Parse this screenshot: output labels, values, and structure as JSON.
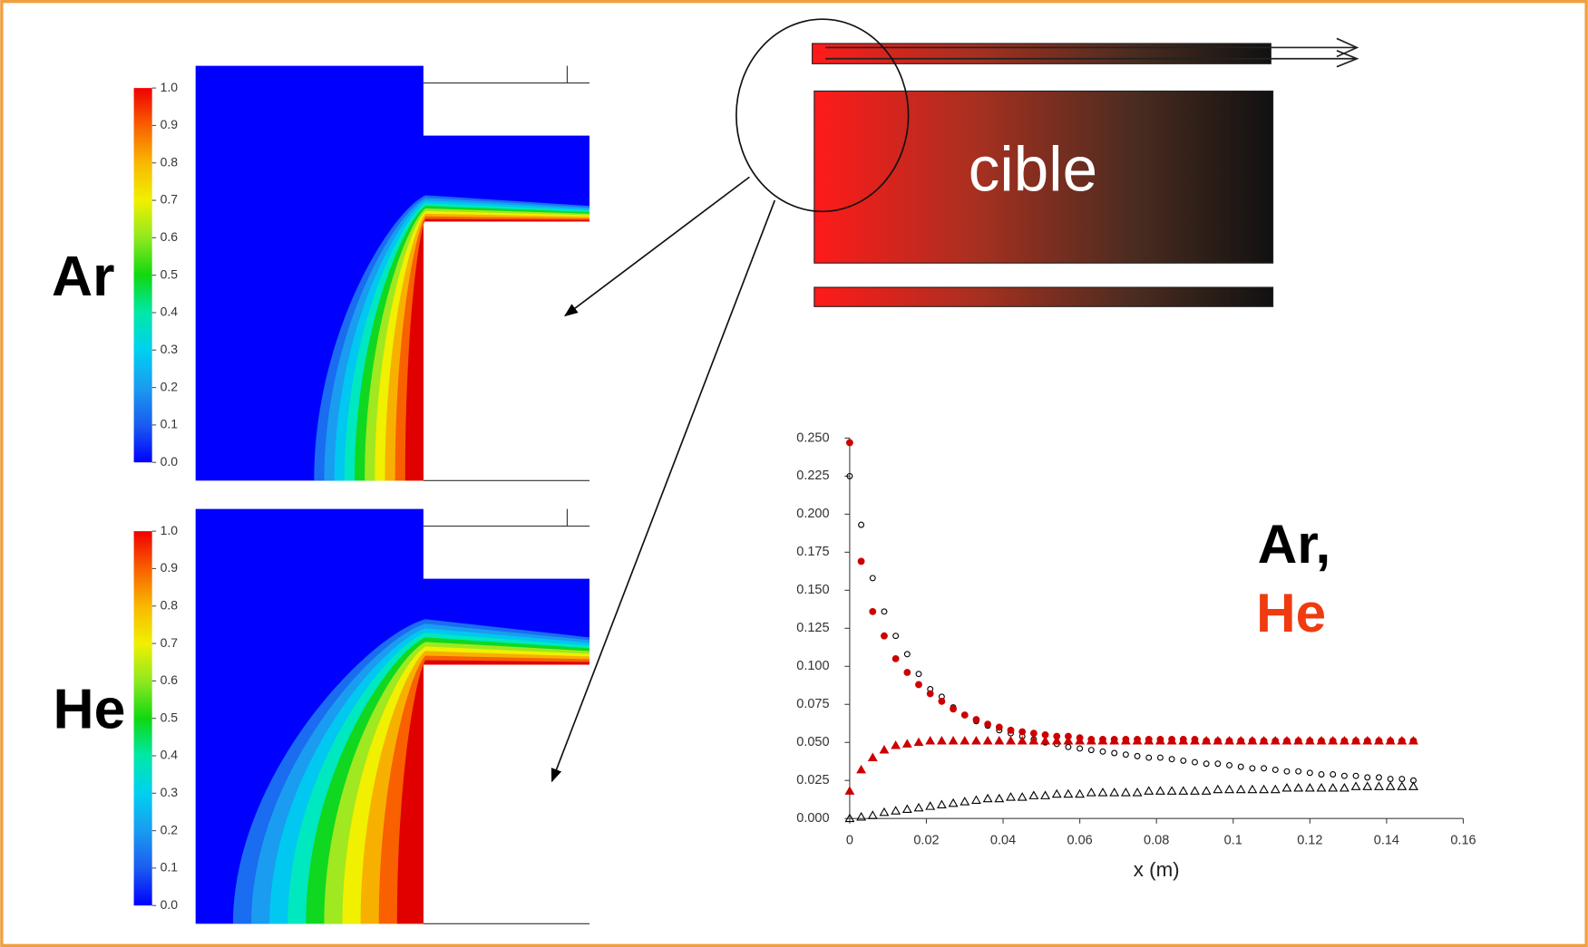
{
  "diagram_label": "cible",
  "contours": [
    {
      "label": "Ar",
      "colorbar_ticks": [
        {
          "value": 0,
          "label": "0.0"
        },
        0.1,
        0.2,
        0.3,
        0.4,
        0.5,
        0.6,
        0.7,
        0.8,
        0.9,
        {
          "value": 1,
          "label": "1.0"
        }
      ]
    },
    {
      "label": "He",
      "colorbar_ticks": [
        {
          "value": 0,
          "label": "0.0"
        },
        0.1,
        0.2,
        0.3,
        0.4,
        0.5,
        0.6,
        0.7,
        0.8,
        0.9,
        {
          "value": 1,
          "label": "1.0"
        }
      ]
    }
  ],
  "chart_data": {
    "type": "scatter",
    "annotations": [
      {
        "text": "Ar,",
        "color": "#000000"
      },
      {
        "text": "He",
        "color": "#f03a10"
      }
    ],
    "xlabel": "x (m)",
    "x": [
      0,
      0.003,
      0.006,
      0.009,
      0.012,
      0.015,
      0.018,
      0.021,
      0.024,
      0.027,
      0.03,
      0.033,
      0.036,
      0.039,
      0.042,
      0.045,
      0.048,
      0.051,
      0.054,
      0.057,
      0.06,
      0.063,
      0.066,
      0.069,
      0.072,
      0.075,
      0.078,
      0.081,
      0.084,
      0.087,
      0.09,
      0.093,
      0.096,
      0.099,
      0.102,
      0.105,
      0.108,
      0.111,
      0.114,
      0.117,
      0.12,
      0.123,
      0.126,
      0.129,
      0.132,
      0.135,
      0.138,
      0.141,
      0.144,
      0.147
    ],
    "series": [
      {
        "color": "#000000",
        "marker": "circle-open",
        "values": [
          0.225,
          0.193,
          0.158,
          0.136,
          0.12,
          0.108,
          0.095,
          0.085,
          0.08,
          0.073,
          0.068,
          0.064,
          0.061,
          0.058,
          0.056,
          0.054,
          0.052,
          0.05,
          0.049,
          0.047,
          0.046,
          0.045,
          0.044,
          0.043,
          0.042,
          0.041,
          0.04,
          0.04,
          0.039,
          0.038,
          0.037,
          0.036,
          0.036,
          0.035,
          0.034,
          0.033,
          0.033,
          0.032,
          0.031,
          0.031,
          0.03,
          0.029,
          0.029,
          0.028,
          0.028,
          0.027,
          0.027,
          0.026,
          0.026,
          0.025
        ]
      },
      {
        "color": "#cc0000",
        "marker": "circle-filled",
        "values": [
          0.247,
          0.169,
          0.136,
          0.12,
          0.105,
          0.096,
          0.088,
          0.082,
          0.077,
          0.072,
          0.068,
          0.065,
          0.062,
          0.06,
          0.058,
          0.057,
          0.056,
          0.055,
          0.054,
          0.054,
          0.053,
          0.052,
          0.052,
          0.052,
          0.052,
          0.052,
          0.052,
          0.052,
          0.052,
          0.052,
          0.052,
          0.051,
          0.051,
          0.051,
          0.051,
          0.051,
          0.051,
          0.051,
          0.051,
          0.051,
          0.051,
          0.051,
          0.051,
          0.051,
          0.051,
          0.051,
          0.051,
          0.051,
          0.051,
          0.051
        ]
      },
      {
        "color": "#000000",
        "marker": "triangle-open",
        "values": [
          0,
          0.001,
          0.002,
          0.004,
          0.005,
          0.006,
          0.007,
          0.008,
          0.009,
          0.01,
          0.011,
          0.012,
          0.013,
          0.013,
          0.014,
          0.014,
          0.015,
          0.015,
          0.016,
          0.016,
          0.016,
          0.017,
          0.017,
          0.017,
          0.017,
          0.017,
          0.018,
          0.018,
          0.018,
          0.018,
          0.018,
          0.018,
          0.019,
          0.019,
          0.019,
          0.019,
          0.019,
          0.019,
          0.02,
          0.02,
          0.02,
          0.02,
          0.02,
          0.02,
          0.021,
          0.021,
          0.021,
          0.021,
          0.021,
          0.021
        ]
      },
      {
        "color": "#cc0000",
        "marker": "triangle-filled",
        "values": [
          0.018,
          0.032,
          0.04,
          0.045,
          0.048,
          0.049,
          0.05,
          0.051,
          0.051,
          0.051,
          0.051,
          0.051,
          0.051,
          0.051,
          0.051,
          0.051,
          0.051,
          0.051,
          0.051,
          0.051,
          0.051,
          0.051,
          0.051,
          0.051,
          0.051,
          0.051,
          0.051,
          0.051,
          0.051,
          0.051,
          0.051,
          0.051,
          0.051,
          0.051,
          0.051,
          0.051,
          0.051,
          0.051,
          0.051,
          0.051,
          0.051,
          0.051,
          0.051,
          0.051,
          0.051,
          0.051,
          0.051,
          0.051,
          0.051,
          0.051
        ]
      }
    ],
    "xlim": [
      0,
      0.16
    ],
    "ylim": [
      0,
      0.25
    ],
    "xticks": [
      0,
      0.02,
      0.04,
      0.06,
      0.08,
      0.1,
      0.12,
      0.14,
      0.16
    ],
    "yticks": [
      {
        "value": 0,
        "label": "0.000"
      },
      0.025,
      {
        "value": 0.05,
        "label": "0.050"
      },
      0.075,
      {
        "value": 0.1,
        "label": "0.100"
      },
      0.125,
      {
        "value": 0.15,
        "label": "0.150"
      },
      0.175,
      {
        "value": 0.2,
        "label": "0.200"
      },
      0.225,
      {
        "value": 0.25,
        "label": "0.250"
      }
    ]
  }
}
